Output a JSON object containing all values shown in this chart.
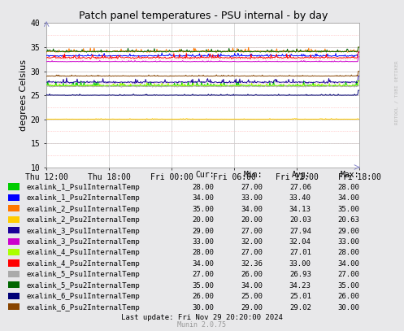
{
  "title": "Patch panel temperatures - PSU internal - by day",
  "ylabel": "degrees Celsius",
  "xlabel_ticks": [
    "Thu 12:00",
    "Thu 18:00",
    "Fri 00:00",
    "Fri 06:00",
    "Fri 12:00",
    "Fri 18:00"
  ],
  "ylim": [
    10,
    40
  ],
  "yticks": [
    10,
    15,
    20,
    25,
    30,
    35,
    40
  ],
  "bg_color": "#e8e8ea",
  "plot_bg_color": "#ffffff",
  "series": [
    {
      "label": "exalink_1_Psu1InternalTemp",
      "color": "#00cc00",
      "avg": 27.06,
      "min": 27.0,
      "max": 28.0,
      "cur": 28.0,
      "base": 27.0,
      "amp": 1.0,
      "noise": 0.5
    },
    {
      "label": "exalink_1_Psu2InternalTemp",
      "color": "#0000ff",
      "avg": 33.4,
      "min": 33.0,
      "max": 34.0,
      "cur": 34.0,
      "base": 33.2,
      "amp": 0.5,
      "noise": 0.3
    },
    {
      "label": "exalink_2_Psu1InternalTemp",
      "color": "#ff7700",
      "avg": 34.13,
      "min": 34.0,
      "max": 35.0,
      "cur": 35.0,
      "base": 34.1,
      "amp": 0.7,
      "noise": 0.4
    },
    {
      "label": "exalink_2_Psu2InternalTemp",
      "color": "#ffcc00",
      "avg": 20.03,
      "min": 20.0,
      "max": 20.63,
      "cur": 20.0,
      "base": 20.0,
      "amp": 0.15,
      "noise": 0.05
    },
    {
      "label": "exalink_3_Psu1InternalTemp",
      "color": "#1a0099",
      "avg": 27.94,
      "min": 27.0,
      "max": 29.0,
      "cur": 29.0,
      "base": 27.7,
      "amp": 0.8,
      "noise": 0.4
    },
    {
      "label": "exalink_3_Psu2InternalTemp",
      "color": "#cc00cc",
      "avg": 32.04,
      "min": 32.0,
      "max": 33.0,
      "cur": 33.0,
      "base": 32.0,
      "amp": 0.2,
      "noise": 0.1
    },
    {
      "label": "exalink_4_Psu1InternalTemp",
      "color": "#aaff00",
      "avg": 27.01,
      "min": 27.0,
      "max": 28.0,
      "cur": 28.0,
      "base": 27.0,
      "amp": 0.5,
      "noise": 0.3
    },
    {
      "label": "exalink_4_Psu2InternalTemp",
      "color": "#ff0000",
      "avg": 33.0,
      "min": 32.36,
      "max": 34.0,
      "cur": 34.0,
      "base": 32.8,
      "amp": 0.8,
      "noise": 0.4
    },
    {
      "label": "exalink_5_Psu1InternalTemp",
      "color": "#aaaaaa",
      "avg": 26.93,
      "min": 26.0,
      "max": 27.0,
      "cur": 27.0,
      "base": 26.8,
      "amp": 0.3,
      "noise": 0.2
    },
    {
      "label": "exalink_5_Psu2InternalTemp",
      "color": "#006600",
      "avg": 34.23,
      "min": 34.0,
      "max": 35.0,
      "cur": 35.0,
      "base": 34.1,
      "amp": 0.6,
      "noise": 0.3
    },
    {
      "label": "exalink_6_Psu1InternalTemp",
      "color": "#000077",
      "avg": 25.01,
      "min": 25.0,
      "max": 26.0,
      "cur": 26.0,
      "base": 25.0,
      "amp": 0.2,
      "noise": 0.1
    },
    {
      "label": "exalink_6_Psu2InternalTemp",
      "color": "#884400",
      "avg": 29.02,
      "min": 29.0,
      "max": 30.0,
      "cur": 30.0,
      "base": 29.0,
      "amp": 0.2,
      "noise": 0.15
    }
  ],
  "legend_colors": [
    "#00cc00",
    "#0000ff",
    "#ff7700",
    "#ffcc00",
    "#1a0099",
    "#cc00cc",
    "#aaff00",
    "#ff0000",
    "#aaaaaa",
    "#006600",
    "#000077",
    "#884400"
  ],
  "legend_labels": [
    "exalink_1_Psu1InternalTemp",
    "exalink_1_Psu2InternalTemp",
    "exalink_2_Psu1InternalTemp",
    "exalink_2_Psu2InternalTemp",
    "exalink_3_Psu1InternalTemp",
    "exalink_3_Psu2InternalTemp",
    "exalink_4_Psu1InternalTemp",
    "exalink_4_Psu2InternalTemp",
    "exalink_5_Psu1InternalTemp",
    "exalink_5_Psu2InternalTemp",
    "exalink_6_Psu1InternalTemp",
    "exalink_6_Psu2InternalTemp"
  ],
  "legend_cur": [
    28.0,
    34.0,
    35.0,
    20.0,
    29.0,
    33.0,
    28.0,
    34.0,
    27.0,
    35.0,
    26.0,
    30.0
  ],
  "legend_min": [
    27.0,
    33.0,
    34.0,
    20.0,
    27.0,
    32.0,
    27.0,
    32.36,
    26.0,
    34.0,
    25.0,
    29.0
  ],
  "legend_avg": [
    27.06,
    33.4,
    34.13,
    20.03,
    27.94,
    32.04,
    27.01,
    33.0,
    26.93,
    34.23,
    25.01,
    29.02
  ],
  "legend_max": [
    28.0,
    34.0,
    35.0,
    20.63,
    29.0,
    33.0,
    28.0,
    34.0,
    27.0,
    35.0,
    26.0,
    30.0
  ],
  "watermark": "RDTOOL / TOBI OETIKER",
  "footer": "Last update: Fri Nov 29 20:20:00 2024",
  "munin_version": "Munin 2.0.75",
  "n_points": 500
}
